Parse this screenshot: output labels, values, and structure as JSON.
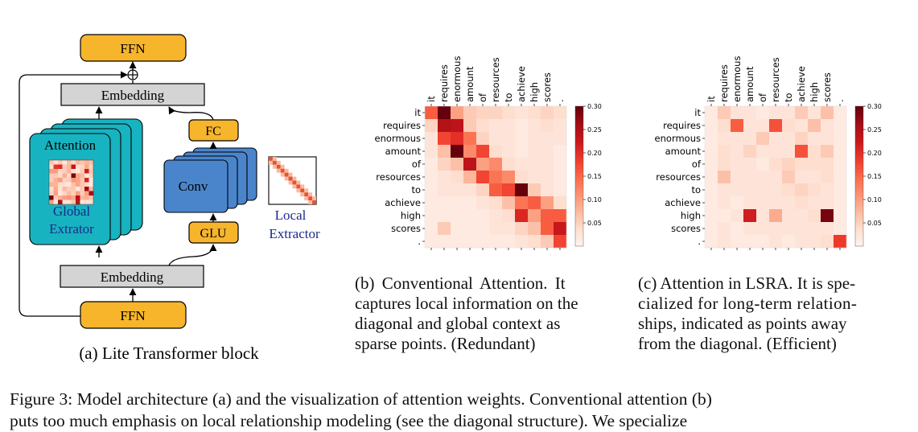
{
  "diagram": {
    "ffn_top": "FFN",
    "embedding_top": "Embedding",
    "attention_label": "Attention",
    "global_extractor": [
      "Global",
      "Extrator"
    ],
    "fc_label": "FC",
    "conv_label": "Conv",
    "glu_label": "GLU",
    "local_extractor": [
      "Local",
      "Extractor"
    ],
    "embedding_bottom": "Embedding",
    "ffn_bottom": "FFN",
    "add_symbol": "⊕",
    "colors": {
      "orange": "#f7b52c",
      "gray": "#d4d4d4",
      "teal": "#18b3c0",
      "blue": "#4a85cc",
      "local_red": "#e8532f",
      "dark_blue_text": "#1a2a8c"
    }
  },
  "subcaption_a": "(a) Lite Transformer block",
  "tokens": [
    "it",
    "requires",
    "enormous",
    "amount",
    "of",
    "resources",
    "to",
    "achieve",
    "high",
    "scores",
    "."
  ],
  "colorbar_ticks": [
    "0.30",
    "0.25",
    "0.20",
    "0.15",
    "0.10",
    "0.05"
  ],
  "chart_data": [
    {
      "type": "heatmap",
      "x": [
        "it",
        "requires",
        "enormous",
        "amount",
        "of",
        "resources",
        "to",
        "achieve",
        "high",
        "scores",
        "."
      ],
      "y": [
        "it",
        "requires",
        "enormous",
        "amount",
        "of",
        "resources",
        "to",
        "achieve",
        "high",
        "scores",
        "."
      ],
      "colorbar_range": [
        0,
        0.3
      ],
      "values": [
        [
          0.16,
          0.3,
          0.1,
          0.06,
          0.05,
          0.05,
          0.04,
          0.03,
          0.04,
          0.05,
          0.04
        ],
        [
          0.05,
          0.25,
          0.24,
          0.06,
          0.04,
          0.03,
          0.03,
          0.02,
          0.03,
          0.04,
          0.03
        ],
        [
          0.03,
          0.18,
          0.2,
          0.14,
          0.05,
          0.03,
          0.03,
          0.02,
          0.03,
          0.03,
          0.03
        ],
        [
          0.03,
          0.07,
          0.3,
          0.12,
          0.18,
          0.04,
          0.03,
          0.02,
          0.03,
          0.03,
          0.02
        ],
        [
          0.02,
          0.05,
          0.07,
          0.24,
          0.1,
          0.12,
          0.04,
          0.03,
          0.03,
          0.03,
          0.02
        ],
        [
          0.02,
          0.03,
          0.04,
          0.08,
          0.18,
          0.14,
          0.12,
          0.04,
          0.03,
          0.03,
          0.02
        ],
        [
          0.02,
          0.03,
          0.03,
          0.03,
          0.05,
          0.16,
          0.18,
          0.3,
          0.06,
          0.03,
          0.02
        ],
        [
          0.02,
          0.02,
          0.02,
          0.02,
          0.03,
          0.04,
          0.07,
          0.14,
          0.16,
          0.1,
          0.04
        ],
        [
          0.02,
          0.02,
          0.02,
          0.02,
          0.02,
          0.03,
          0.04,
          0.21,
          0.1,
          0.16,
          0.16
        ],
        [
          0.02,
          0.06,
          0.02,
          0.02,
          0.02,
          0.03,
          0.03,
          0.05,
          0.07,
          0.16,
          0.23
        ],
        [
          0.02,
          0.02,
          0.02,
          0.02,
          0.02,
          0.02,
          0.02,
          0.03,
          0.04,
          0.06,
          0.18
        ]
      ]
    },
    {
      "type": "heatmap",
      "x": [
        "it",
        "requires",
        "enormous",
        "amount",
        "of",
        "resources",
        "to",
        "achieve",
        "high",
        "scores",
        "."
      ],
      "y": [
        "it",
        "requires",
        "enormous",
        "amount",
        "of",
        "resources",
        "to",
        "achieve",
        "high",
        "scores",
        "."
      ],
      "colorbar_range": [
        0,
        0.3
      ],
      "values": [
        [
          0.02,
          0.06,
          0.03,
          0.03,
          0.02,
          0.03,
          0.03,
          0.06,
          0.03,
          0.07,
          0.02
        ],
        [
          0.02,
          0.04,
          0.16,
          0.03,
          0.03,
          0.17,
          0.04,
          0.03,
          0.07,
          0.03,
          0.02
        ],
        [
          0.02,
          0.03,
          0.03,
          0.03,
          0.06,
          0.03,
          0.03,
          0.05,
          0.03,
          0.03,
          0.02
        ],
        [
          0.02,
          0.04,
          0.03,
          0.05,
          0.03,
          0.03,
          0.03,
          0.17,
          0.04,
          0.06,
          0.02
        ],
        [
          0.02,
          0.04,
          0.03,
          0.03,
          0.02,
          0.04,
          0.05,
          0.04,
          0.04,
          0.04,
          0.02
        ],
        [
          0.02,
          0.07,
          0.03,
          0.03,
          0.03,
          0.03,
          0.06,
          0.03,
          0.03,
          0.04,
          0.02
        ],
        [
          0.02,
          0.03,
          0.03,
          0.03,
          0.03,
          0.03,
          0.04,
          0.05,
          0.04,
          0.03,
          0.02
        ],
        [
          0.02,
          0.03,
          0.02,
          0.03,
          0.03,
          0.03,
          0.03,
          0.04,
          0.03,
          0.03,
          0.02
        ],
        [
          0.02,
          0.02,
          0.03,
          0.22,
          0.03,
          0.09,
          0.03,
          0.03,
          0.04,
          0.29,
          0.02
        ],
        [
          0.02,
          0.03,
          0.02,
          0.03,
          0.03,
          0.03,
          0.03,
          0.03,
          0.03,
          0.03,
          0.02
        ],
        [
          0.02,
          0.03,
          0.02,
          0.02,
          0.02,
          0.03,
          0.02,
          0.03,
          0.03,
          0.04,
          0.19
        ]
      ]
    }
  ],
  "subcaption_b": [
    "(b) Conventional Attention. It",
    "captures local information on the",
    "diagonal and global context as",
    "sparse points. (Redundant)"
  ],
  "subcaption_c": [
    "(c) Attention in LSRA. It is spe-",
    "cialized for long-term relation-",
    "ships, indicated as points away",
    "from the diagonal. (Efficient)"
  ],
  "figure_caption": "Figure 3: Model architecture (a) and the visualization of attention weights. Conventional attention (b)",
  "figure_caption_cut": "puts too much emphasis on local relationship modeling (see the diagonal structure). We specialize"
}
